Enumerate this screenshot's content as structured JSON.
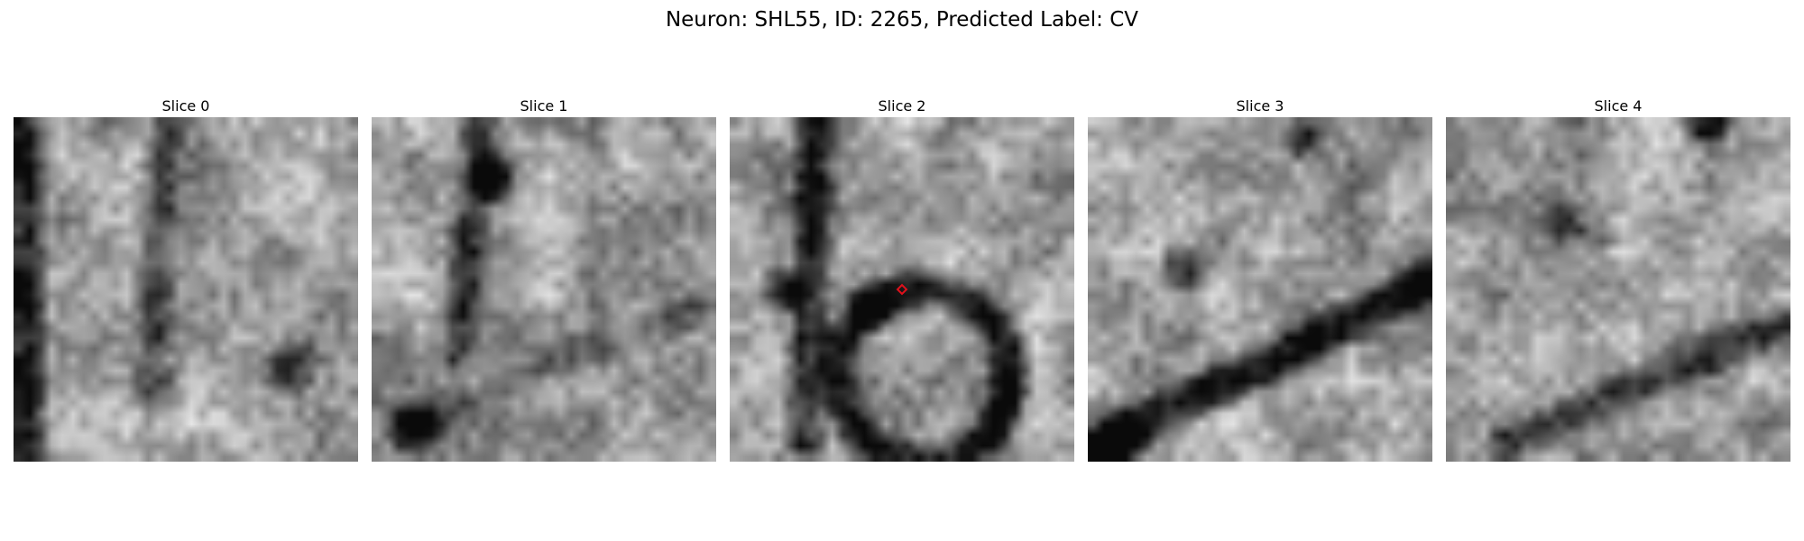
{
  "figure": {
    "suptitle": "Neuron: SHL55, ID: 2265, Predicted Label: CV"
  },
  "panels": [
    {
      "title": "Slice 0",
      "seed": 11,
      "has_marker": false
    },
    {
      "title": "Slice 1",
      "seed": 27,
      "has_marker": false
    },
    {
      "title": "Slice 2",
      "seed": 43,
      "has_marker": true
    },
    {
      "title": "Slice 3",
      "seed": 59,
      "has_marker": false
    },
    {
      "title": "Slice 4",
      "seed": 75,
      "has_marker": false
    }
  ],
  "colors": {
    "marker": "#e0101b",
    "background": "#ffffff",
    "text": "#000000"
  },
  "image_grid": {
    "pixels_per_side": 32,
    "colormap": "gray"
  }
}
